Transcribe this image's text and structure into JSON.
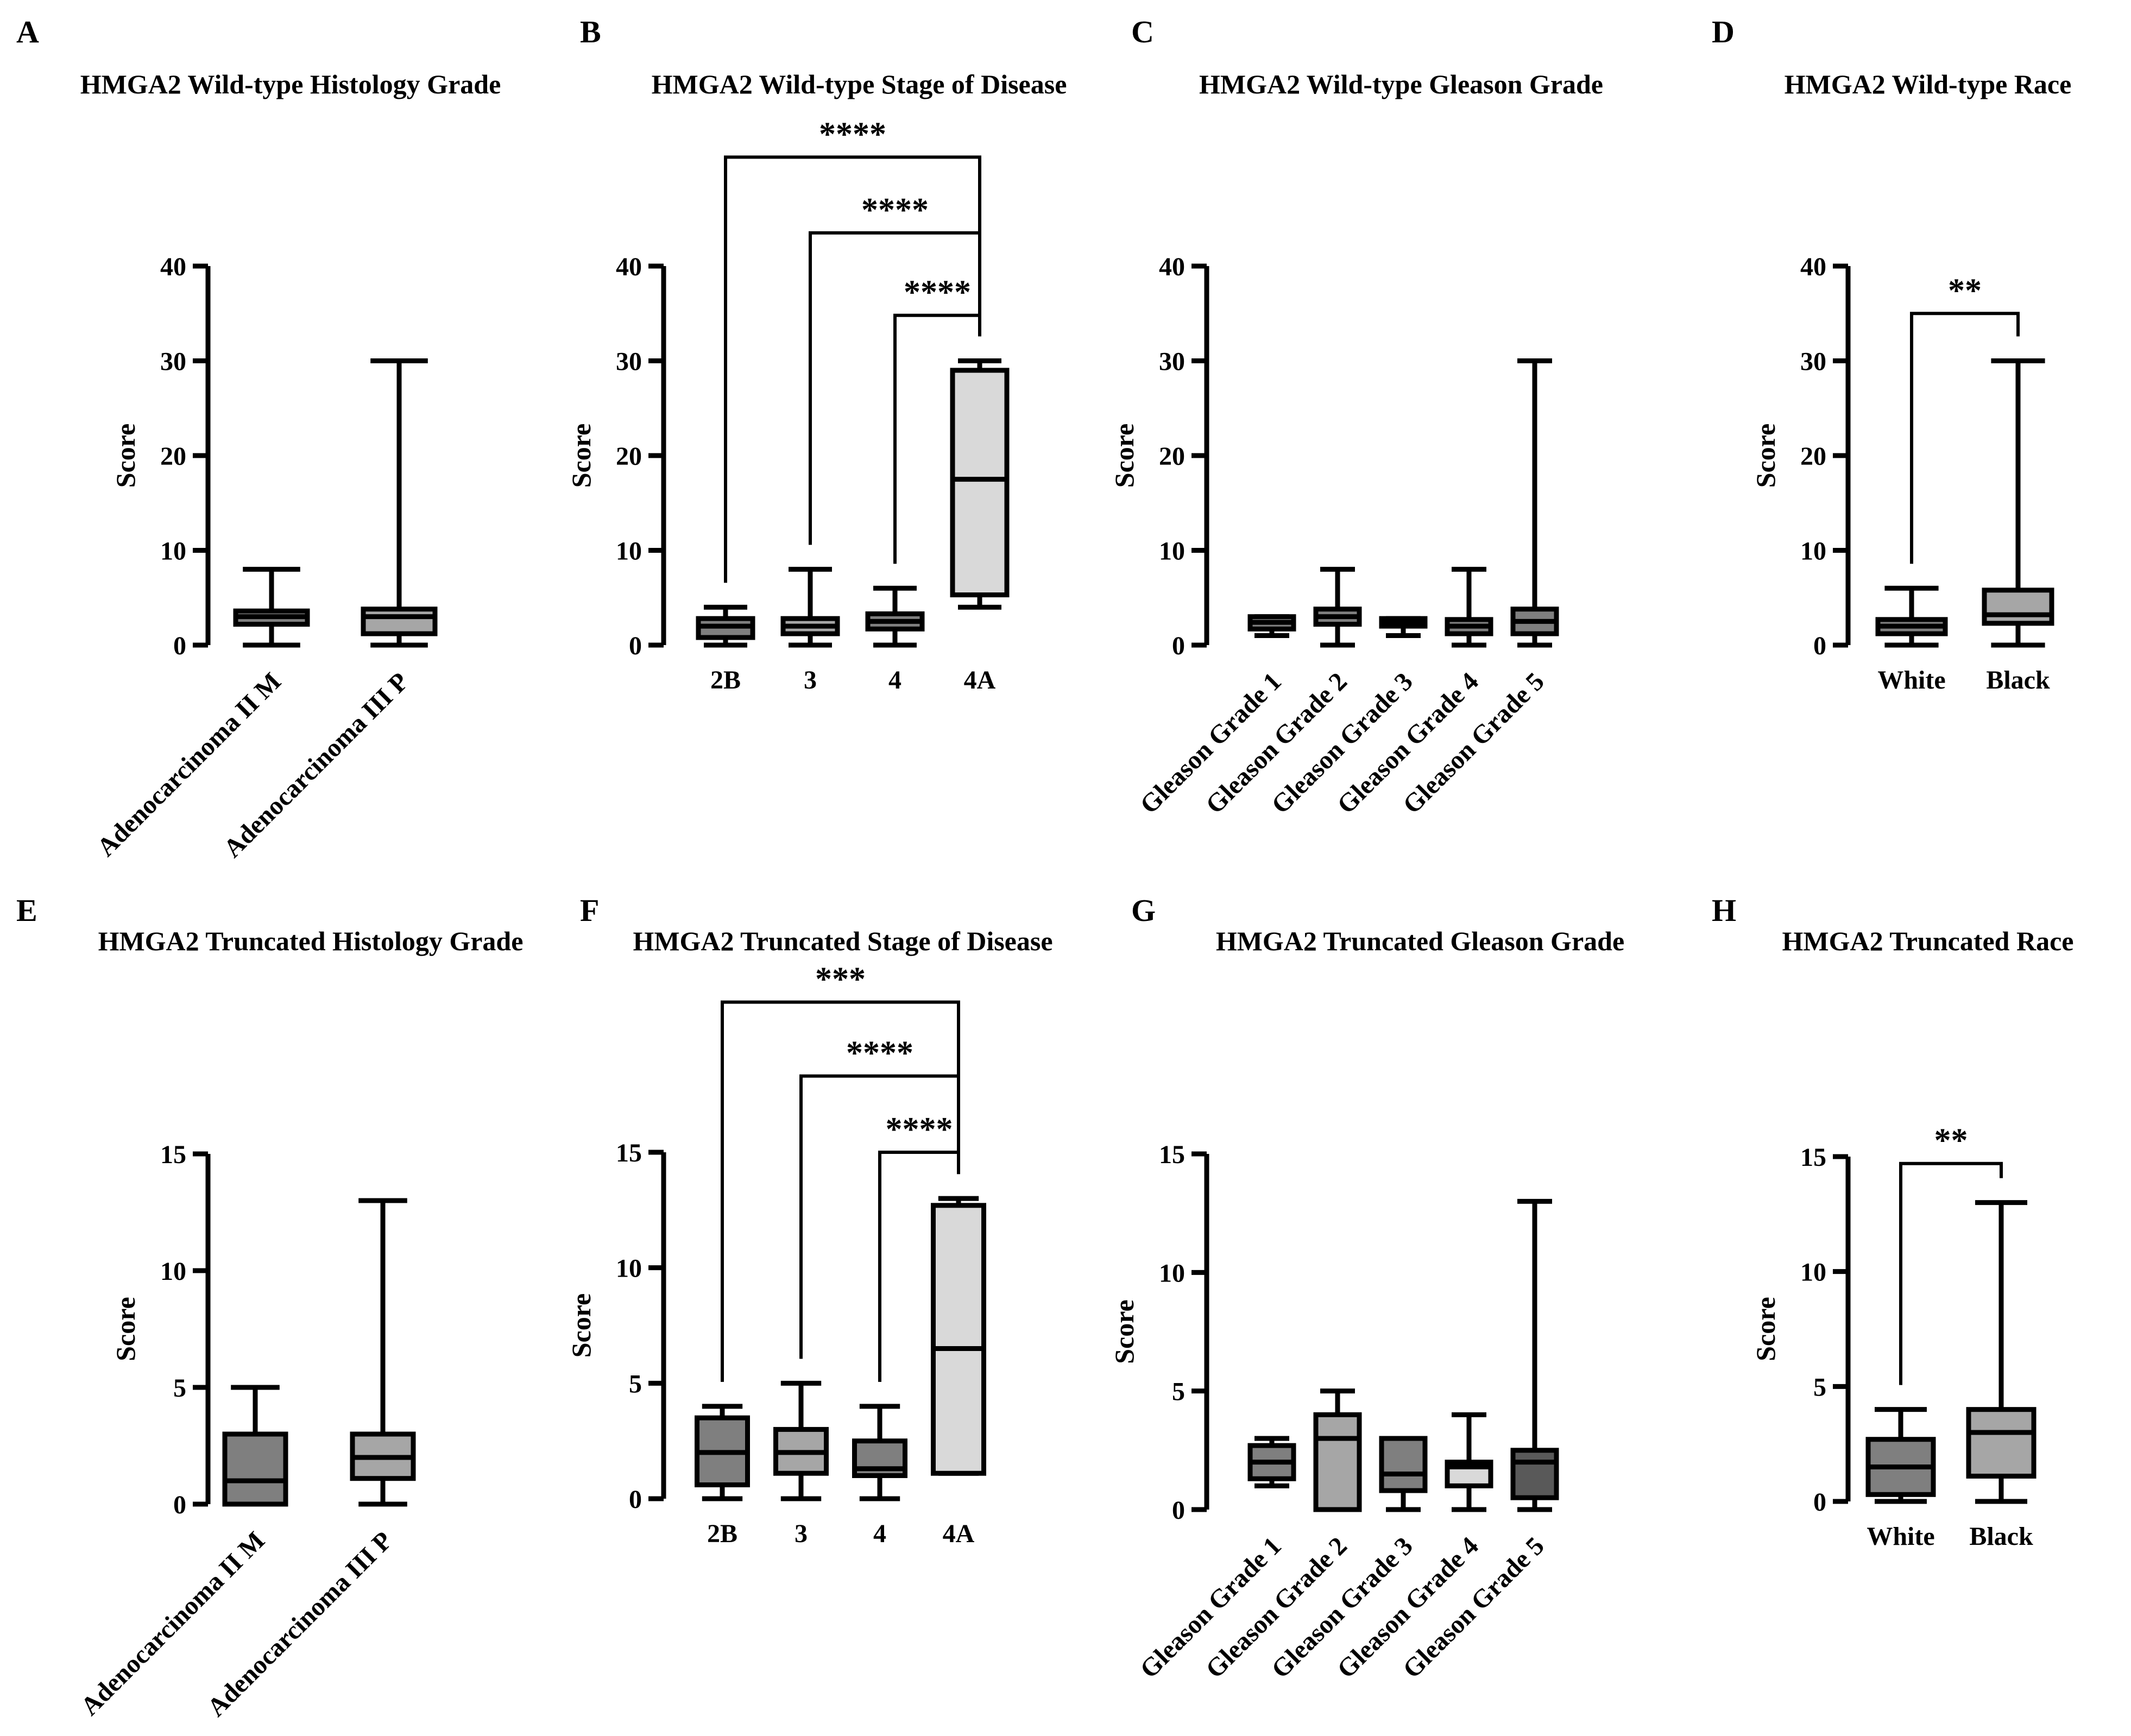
{
  "figure": {
    "type": "multi-panel box plots",
    "y_label": "Score"
  },
  "chart_data": [
    {
      "panel": "A",
      "type": "box",
      "title": "HMGA2 Wild-type Histology Grade",
      "ylabel": "Score",
      "ylim": [
        0,
        40
      ],
      "yticks": [
        0,
        10,
        20,
        30,
        40
      ],
      "x_tick_rotation": -45,
      "categories": [
        "Adenocarcinoma II M",
        "Adenocarcinoma III P"
      ],
      "boxes": [
        {
          "min": 0,
          "q1": 2.2,
          "median": 3,
          "q3": 3.6,
          "max": 8,
          "color": "#7f7f7f"
        },
        {
          "min": 0,
          "q1": 1.2,
          "median": 3,
          "q3": 3.8,
          "max": 30,
          "color": "#a6a6a6"
        }
      ],
      "comparisons": []
    },
    {
      "panel": "B",
      "type": "box",
      "title": "HMGA2 Wild-type Stage of Disease",
      "ylabel": "Score",
      "ylim": [
        0,
        40
      ],
      "yticks": [
        0,
        10,
        20,
        30,
        40
      ],
      "x_tick_rotation": 0,
      "categories": [
        "2B",
        "3",
        "4",
        "4A"
      ],
      "boxes": [
        {
          "min": 0,
          "q1": 0.8,
          "median": 2,
          "q3": 2.8,
          "max": 4,
          "color": "#7f7f7f"
        },
        {
          "min": 0,
          "q1": 1.2,
          "median": 2,
          "q3": 2.8,
          "max": 8,
          "color": "#a6a6a6"
        },
        {
          "min": 0,
          "q1": 1.7,
          "median": 2.5,
          "q3": 3.3,
          "max": 6,
          "color": "#7f7f7f"
        },
        {
          "min": 4,
          "q1": 5.3,
          "median": 17.5,
          "q3": 29,
          "max": 30,
          "color": "#d9d9d9"
        }
      ],
      "comparisons": [
        {
          "from": 0,
          "to": 3,
          "label": "****",
          "y": 51.5
        },
        {
          "from": 1,
          "to": 3,
          "label": "****",
          "y": 43.5
        },
        {
          "from": 2,
          "to": 3,
          "label": "****",
          "y": 34.8
        }
      ]
    },
    {
      "panel": "C",
      "type": "box",
      "title": "HMGA2 Wild-type Gleason Grade",
      "ylabel": "Score",
      "ylim": [
        0,
        40
      ],
      "yticks": [
        0,
        10,
        20,
        30,
        40
      ],
      "x_tick_rotation": -45,
      "categories": [
        "Gleason Grade 1",
        "Gleason Grade 2",
        "Gleason Grade 3",
        "Gleason Grade 4",
        "Gleason Grade 5"
      ],
      "boxes": [
        {
          "min": 1,
          "q1": 1.7,
          "median": 2.4,
          "q3": 3,
          "max": 3,
          "color": "#7f7f7f"
        },
        {
          "min": 0,
          "q1": 2.2,
          "median": 3,
          "q3": 3.8,
          "max": 8,
          "color": "#7f7f7f"
        },
        {
          "min": 1,
          "q1": 2,
          "median": 2.4,
          "q3": 2.8,
          "max": 2.8,
          "color": "#7f7f7f"
        },
        {
          "min": 0,
          "q1": 1.2,
          "median": 2,
          "q3": 2.7,
          "max": 8,
          "color": "#7f7f7f"
        },
        {
          "min": 0,
          "q1": 1.2,
          "median": 2.5,
          "q3": 3.8,
          "max": 30,
          "color": "#7f7f7f"
        }
      ],
      "comparisons": []
    },
    {
      "panel": "D",
      "type": "box",
      "title": "HMGA2 Wild-type Race",
      "ylabel": "Score",
      "ylim": [
        0,
        40
      ],
      "yticks": [
        0,
        10,
        20,
        30,
        40
      ],
      "x_tick_rotation": 0,
      "categories": [
        "White",
        "Black"
      ],
      "boxes": [
        {
          "min": 0,
          "q1": 1.2,
          "median": 2,
          "q3": 2.7,
          "max": 6,
          "color": "#7f7f7f"
        },
        {
          "min": 0,
          "q1": 2.3,
          "median": 3.2,
          "q3": 5.8,
          "max": 30,
          "color": "#a6a6a6"
        }
      ],
      "comparisons": [
        {
          "from": 0,
          "to": 1,
          "label": "**",
          "y": 35
        }
      ]
    },
    {
      "panel": "E",
      "type": "box",
      "title": "HMGA2 Truncated Histology Grade",
      "ylabel": "Score",
      "ylim": [
        0,
        15
      ],
      "yticks": [
        0,
        5,
        10,
        15
      ],
      "x_tick_rotation": -45,
      "categories": [
        "Adenocarcinoma II M",
        "Adenocarcinoma III P"
      ],
      "boxes": [
        {
          "min": 0,
          "q1": 0,
          "median": 1,
          "q3": 3,
          "max": 5,
          "color": "#7f7f7f"
        },
        {
          "min": 0,
          "q1": 1.1,
          "median": 2,
          "q3": 3,
          "max": 13,
          "color": "#a6a6a6"
        }
      ],
      "comparisons": []
    },
    {
      "panel": "F",
      "type": "box",
      "title": "HMGA2 Truncated Stage of Disease",
      "ylabel": "Score",
      "ylim": [
        0,
        15
      ],
      "yticks": [
        0,
        5,
        10,
        15
      ],
      "x_tick_rotation": 0,
      "categories": [
        "2B",
        "3",
        "4",
        "4A"
      ],
      "boxes": [
        {
          "min": 0,
          "q1": 0.6,
          "median": 2,
          "q3": 3.5,
          "max": 4,
          "color": "#7f7f7f"
        },
        {
          "min": 0,
          "q1": 1.1,
          "median": 2,
          "q3": 3,
          "max": 5,
          "color": "#a6a6a6"
        },
        {
          "min": 0,
          "q1": 1,
          "median": 1.3,
          "q3": 2.5,
          "max": 4,
          "color": "#7f7f7f"
        },
        {
          "min": 1.1,
          "q1": 1.1,
          "median": 6.5,
          "q3": 12.7,
          "max": 13,
          "color": "#d9d9d9"
        }
      ],
      "comparisons": [
        {
          "from": 0,
          "to": 3,
          "label": "***",
          "y": 21.5
        },
        {
          "from": 1,
          "to": 3,
          "label": "****",
          "y": 18.3
        },
        {
          "from": 2,
          "to": 3,
          "label": "****",
          "y": 15
        }
      ]
    },
    {
      "panel": "G",
      "type": "box",
      "title": "HMGA2 Truncated Gleason Grade",
      "ylabel": "Score",
      "ylim": [
        0,
        15
      ],
      "yticks": [
        0,
        5,
        10,
        15
      ],
      "x_tick_rotation": -45,
      "categories": [
        "Gleason Grade 1",
        "Gleason Grade 2",
        "Gleason Grade 3",
        "Gleason Grade 4",
        "Gleason Grade 5"
      ],
      "boxes": [
        {
          "min": 1,
          "q1": 1.3,
          "median": 2,
          "q3": 2.7,
          "max": 3,
          "color": "#7f7f7f"
        },
        {
          "min": 0,
          "q1": 0,
          "median": 3,
          "q3": 4,
          "max": 5,
          "color": "#a6a6a6"
        },
        {
          "min": 0,
          "q1": 0.8,
          "median": 1.5,
          "q3": 3,
          "max": 3,
          "color": "#7f7f7f"
        },
        {
          "min": 0,
          "q1": 1,
          "median": 1.8,
          "q3": 2,
          "max": 4,
          "color": "#d9d9d9"
        },
        {
          "min": 0,
          "q1": 0.5,
          "median": 2,
          "q3": 2.5,
          "max": 13,
          "color": "#595959"
        }
      ],
      "comparisons": []
    },
    {
      "panel": "H",
      "type": "box",
      "title": "HMGA2 Truncated  Race",
      "ylabel": "Score",
      "ylim": [
        0,
        15
      ],
      "yticks": [
        0,
        5,
        10,
        15
      ],
      "x_tick_rotation": 0,
      "categories": [
        "White",
        "Black"
      ],
      "boxes": [
        {
          "min": 0,
          "q1": 0.3,
          "median": 1.5,
          "q3": 2.7,
          "max": 4,
          "color": "#7f7f7f"
        },
        {
          "min": 0,
          "q1": 1.1,
          "median": 3,
          "q3": 4,
          "max": 13,
          "color": "#a6a6a6"
        }
      ],
      "comparisons": [
        {
          "from": 0,
          "to": 1,
          "label": "**",
          "y": 14.7
        }
      ]
    }
  ]
}
